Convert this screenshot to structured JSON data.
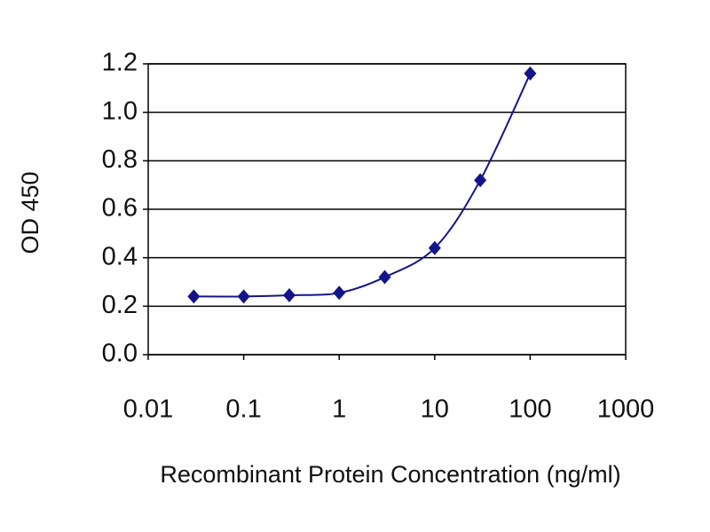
{
  "chart_data": {
    "type": "line",
    "x_label": "Recombinant Protein Concentration (ng/ml)",
    "y_label": "OD 450",
    "xscale": "log",
    "xlim": [
      0.01,
      1000
    ],
    "xticks": [
      0.01,
      0.1,
      1,
      10,
      100,
      1000
    ],
    "ylim": [
      0,
      1.2
    ],
    "yticks": [
      {
        "value": 0,
        "label": "0.0"
      },
      0.2,
      0.4,
      0.6,
      0.8,
      {
        "value": 1,
        "label": "1.0"
      },
      1.2
    ],
    "grid": true,
    "series": [
      {
        "color": "#14148a",
        "x": [
          0.03,
          0.1,
          0.3,
          1,
          3,
          10,
          30,
          100
        ],
        "values": [
          0.24,
          0.24,
          0.245,
          0.255,
          0.32,
          0.44,
          0.72,
          1.16
        ]
      }
    ]
  }
}
